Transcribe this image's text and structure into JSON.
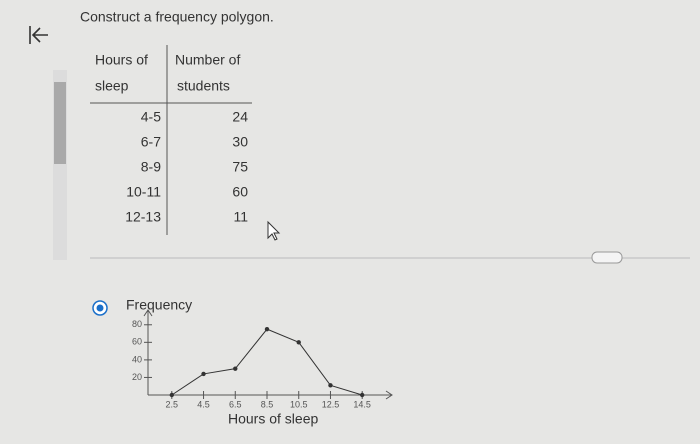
{
  "header": {
    "title": "Construct a frequency polygon."
  },
  "table": {
    "columns": [
      [
        "Hours of",
        "sleep"
      ],
      [
        "Number of",
        "students"
      ]
    ],
    "rows": [
      [
        "4-5",
        24
      ],
      [
        "6-7",
        30
      ],
      [
        "8-9",
        75
      ],
      [
        "10-11",
        60
      ],
      [
        "12-13",
        11
      ]
    ]
  },
  "chart": {
    "type": "line",
    "y_label": "Frequency",
    "x_label": "Hours of sleep",
    "x": [
      2.5,
      4.5,
      6.5,
      8.5,
      10.5,
      12.5,
      14.5
    ],
    "series": [
      {
        "color": "#333333",
        "values": [
          0,
          24,
          30,
          75,
          60,
          11,
          0
        ]
      }
    ],
    "xlim": [
      1,
      16
    ],
    "ylim": [
      0,
      90
    ],
    "xticks": [
      2.5,
      4.5,
      6.5,
      8.5,
      10.5,
      12.5,
      14.5
    ],
    "yticks": [
      20,
      40,
      60,
      80
    ]
  }
}
